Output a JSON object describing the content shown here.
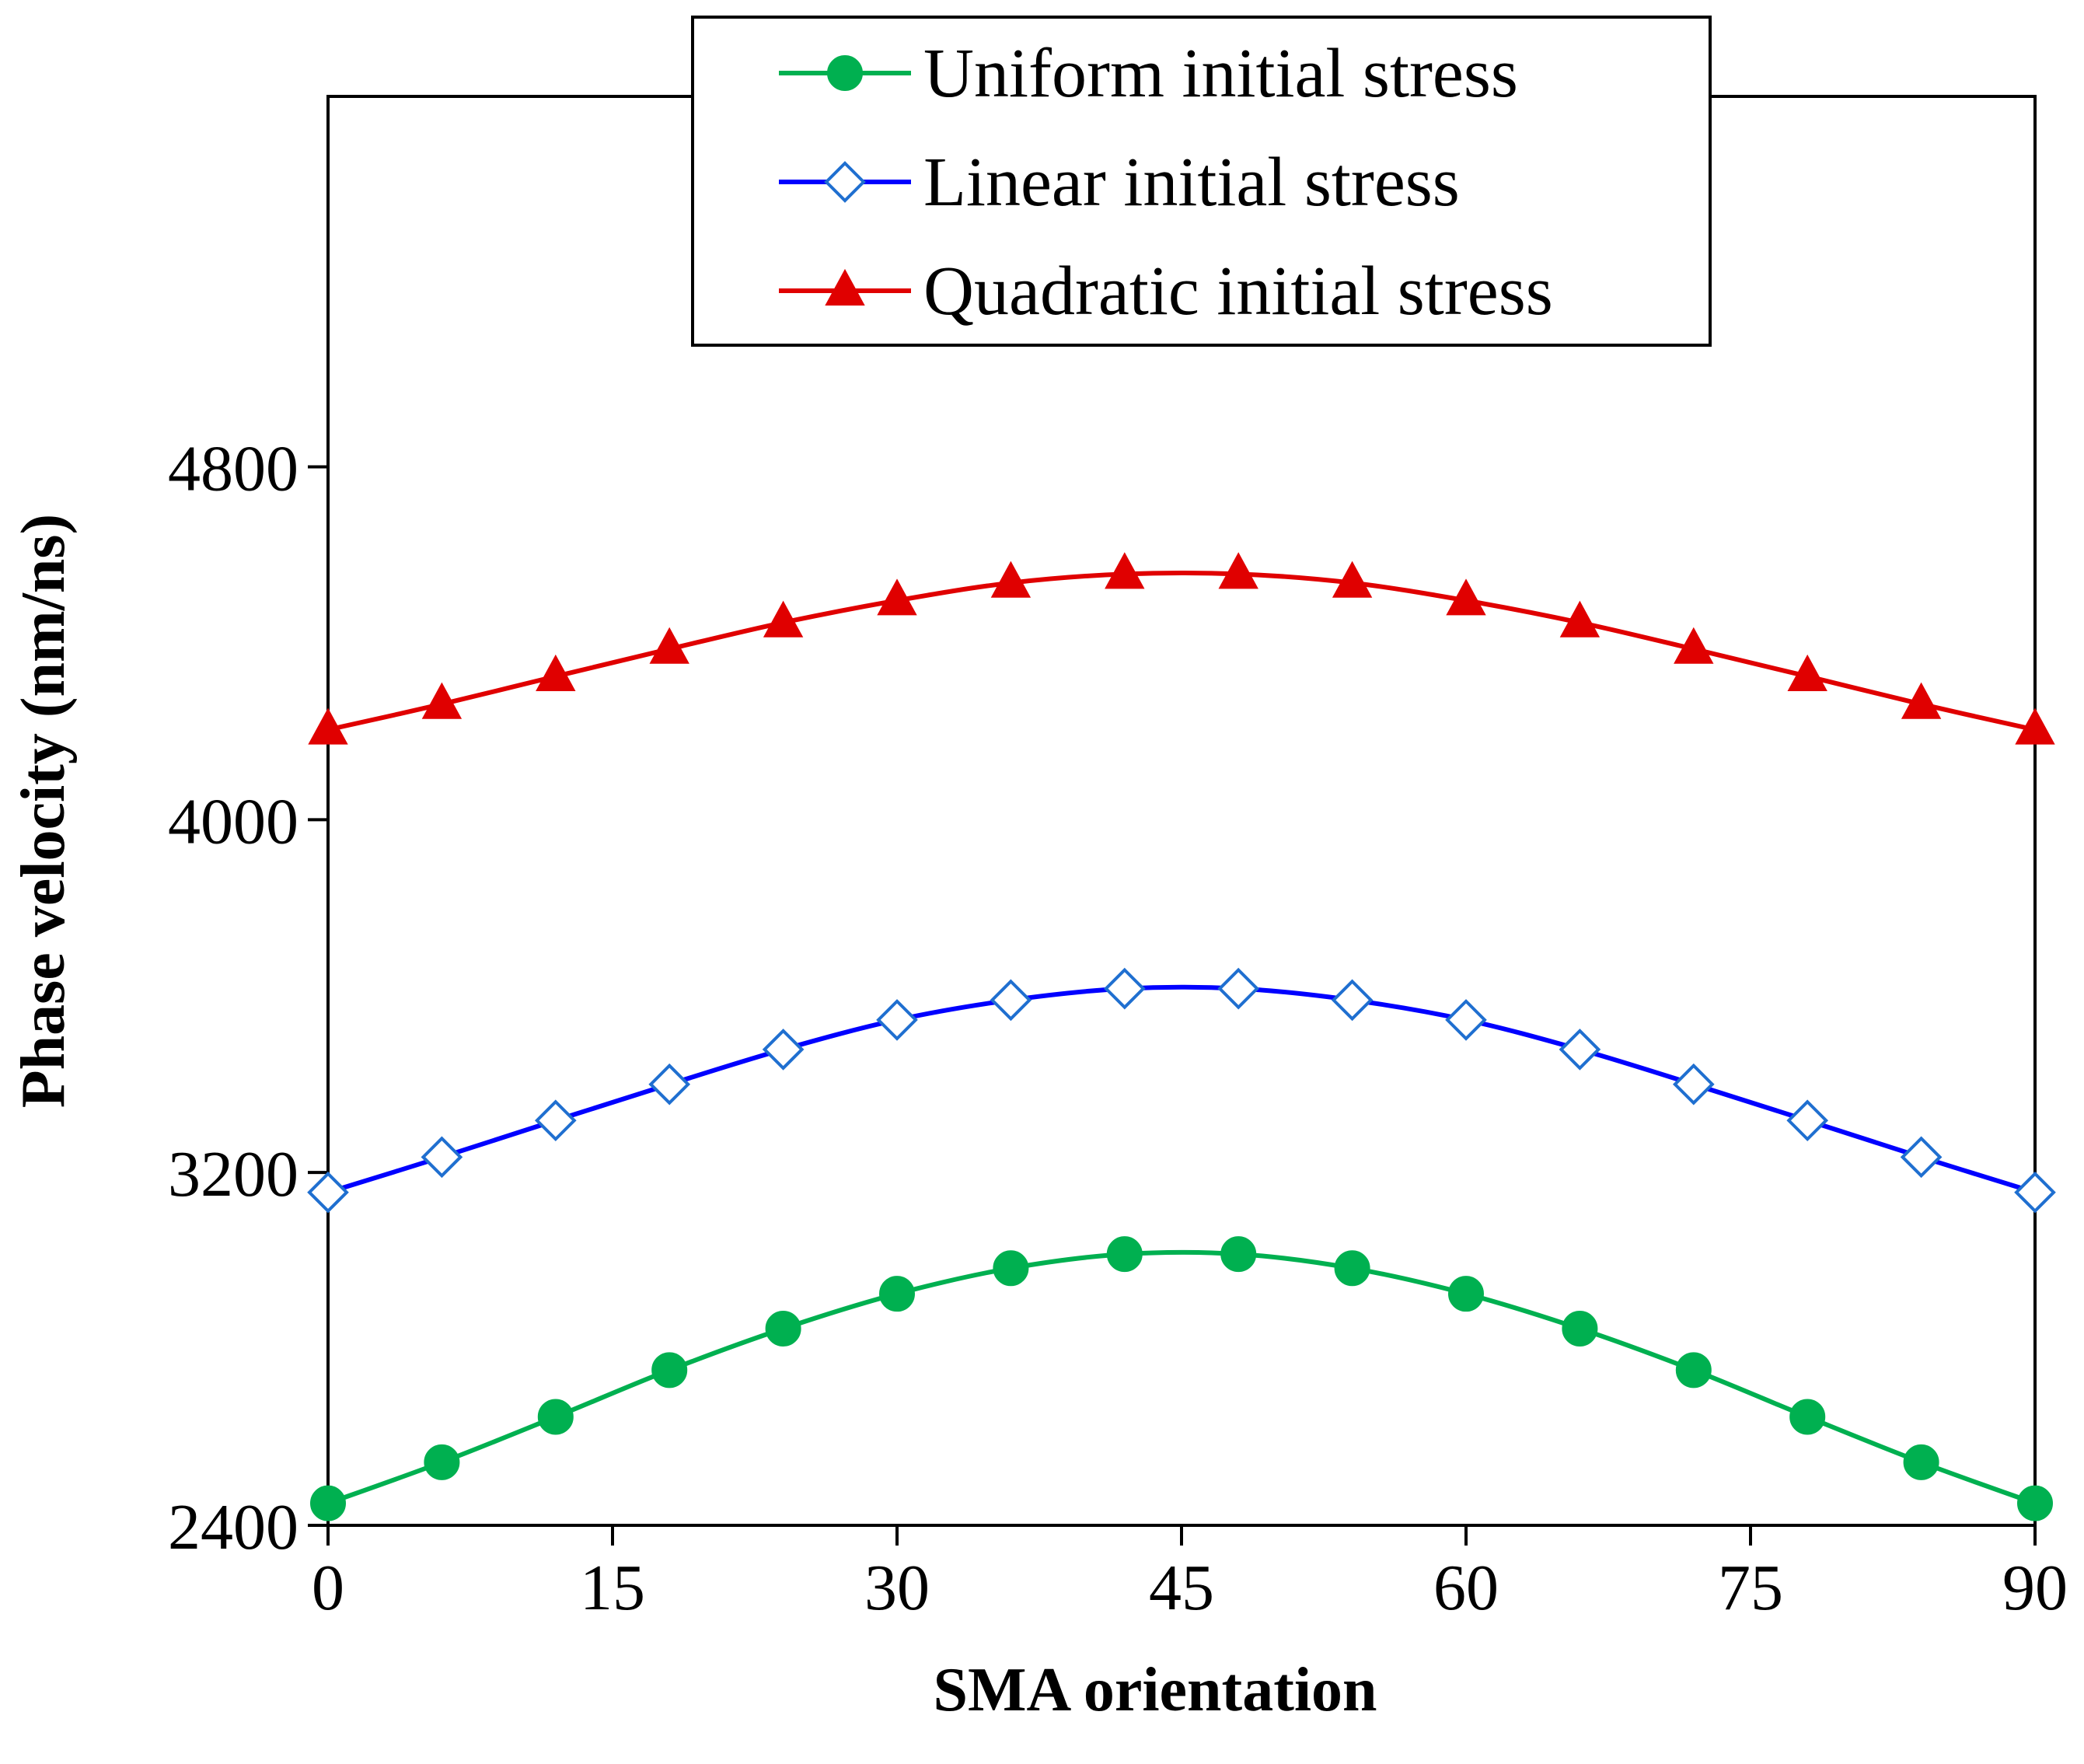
{
  "chart_data": {
    "type": "line",
    "title": "",
    "xlabel": "SMA orientation",
    "ylabel": "Phase velocity (nm/ns)",
    "xlim": [
      0,
      90
    ],
    "ylim": [
      2400,
      5640
    ],
    "x_ticks": [
      0,
      15,
      30,
      45,
      60,
      75,
      90
    ],
    "y_ticks": [
      2400,
      3200,
      4000,
      4800
    ],
    "grid": false,
    "legend_position": "top-center",
    "x": [
      0,
      6,
      12,
      18,
      24,
      30,
      36,
      42,
      48,
      54,
      60,
      66,
      72,
      78,
      84,
      90
    ],
    "series": [
      {
        "name": "Uniform initial stress",
        "color": "#00b050",
        "marker": "circle",
        "marker_filled": true,
        "values": [
          2450,
          2543,
          2646,
          2752,
          2846,
          2925,
          2983,
          3015,
          3015,
          2983,
          2925,
          2846,
          2752,
          2646,
          2543,
          2450
        ]
      },
      {
        "name": "Linear initial stress",
        "color": "#0000ff",
        "marker": "diamond",
        "marker_filled": false,
        "values": [
          3155,
          3235,
          3318,
          3400,
          3479,
          3546,
          3591,
          3617,
          3617,
          3591,
          3546,
          3479,
          3400,
          3318,
          3235,
          3155
        ]
      },
      {
        "name": "Quadratic initial stress",
        "color": "#e00000",
        "marker": "triangle",
        "marker_filled": true,
        "values": [
          4204,
          4262,
          4325,
          4387,
          4447,
          4497,
          4537,
          4557,
          4557,
          4537,
          4497,
          4447,
          4387,
          4325,
          4262,
          4204
        ]
      }
    ]
  }
}
